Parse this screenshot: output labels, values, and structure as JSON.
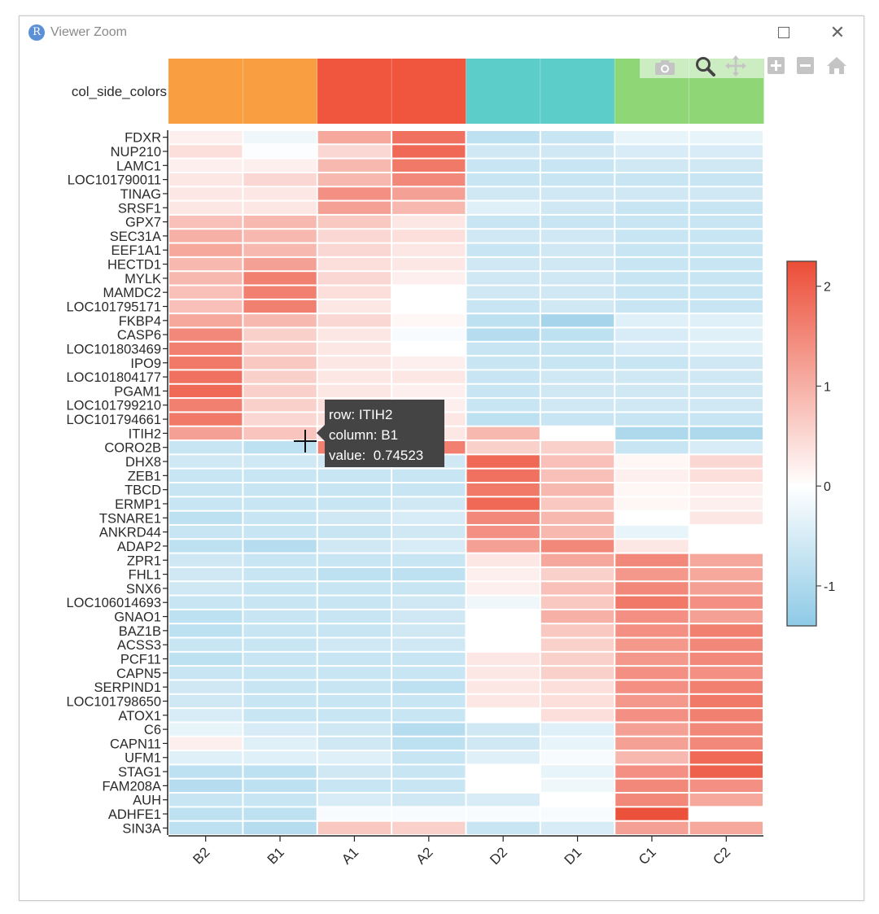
{
  "window": {
    "title": "Viewer Zoom",
    "app_icon": "R",
    "close_glyph": "✕"
  },
  "toolbar": {
    "buttons": [
      {
        "name": "camera-icon",
        "label": "Download plot as a png"
      },
      {
        "name": "zoom-icon",
        "label": "Zoom"
      },
      {
        "name": "pan-icon",
        "label": "Pan"
      },
      {
        "name": "zoom-in-icon",
        "label": "Zoom in"
      },
      {
        "name": "zoom-out-icon",
        "label": "Zoom out"
      },
      {
        "name": "home-icon",
        "label": "Reset axes"
      }
    ]
  },
  "tooltip": {
    "row": "row: ITIH2",
    "column": "column: B1",
    "value": "value:  0.74523"
  },
  "chart_data": {
    "type": "heatmap",
    "columns": [
      "B2",
      "B1",
      "A1",
      "A2",
      "D2",
      "D1",
      "C1",
      "C2"
    ],
    "rows": [
      "FDXR",
      "NUP210",
      "LAMC1",
      "LOC101790011",
      "TINAG",
      "SRSF1",
      "GPX7",
      "SEC31A",
      "EEF1A1",
      "HECTD1",
      "MYLK",
      "MAMDC2",
      "LOC101795171",
      "FKBP4",
      "CASP6",
      "LOC101803469",
      "IPO9",
      "LOC101804177",
      "PGAM1",
      "LOC101799210",
      "LOC101794661",
      "ITIH2",
      "CORO2B",
      "DHX8",
      "ZEB1",
      "TBCD",
      "ERMP1",
      "TSNARE1",
      "ANKRD44",
      "ADAP2",
      "ZPR1",
      "FHL1",
      "SNX6",
      "LOC106014693",
      "GNAO1",
      "BAZ1B",
      "ACSS3",
      "PCF11",
      "CAPN5",
      "SERPIND1",
      "LOC101798650",
      "ATOX1",
      "C6",
      "CAPN11",
      "UFM1",
      "STAG1",
      "FAM208A",
      "AUH",
      "ADHFE1",
      "SIN3A"
    ],
    "values": [
      [
        0.2,
        -0.2,
        1.1,
        1.8,
        -0.8,
        -0.7,
        -0.3,
        -0.3
      ],
      [
        0.4,
        -0.05,
        0.5,
        1.9,
        -0.6,
        -0.6,
        -0.5,
        -0.5
      ],
      [
        0.2,
        0.2,
        0.9,
        1.7,
        -0.7,
        -0.7,
        -0.6,
        -0.6
      ],
      [
        0.3,
        0.5,
        0.9,
        1.5,
        -0.7,
        -0.7,
        -0.7,
        -0.7
      ],
      [
        0.3,
        0.3,
        1.4,
        1.2,
        -0.6,
        -0.6,
        -0.6,
        -0.6
      ],
      [
        0.3,
        0.3,
        1.2,
        0.9,
        -0.4,
        -0.6,
        -0.7,
        -0.7
      ],
      [
        0.8,
        0.9,
        0.7,
        0.3,
        -0.7,
        -0.7,
        -0.7,
        -0.7
      ],
      [
        1.0,
        0.9,
        0.5,
        0.4,
        -0.6,
        -0.6,
        -0.7,
        -0.7
      ],
      [
        1.1,
        0.9,
        0.5,
        0.3,
        -0.7,
        -0.6,
        -0.7,
        -0.7
      ],
      [
        0.9,
        1.2,
        0.4,
        0.3,
        -0.6,
        -0.6,
        -0.7,
        -0.7
      ],
      [
        0.9,
        1.6,
        0.5,
        0.2,
        -0.6,
        -0.6,
        -0.7,
        -0.7
      ],
      [
        0.8,
        1.6,
        0.4,
        0.0,
        -0.6,
        -0.6,
        -0.7,
        -0.7
      ],
      [
        0.8,
        1.6,
        0.3,
        0.0,
        -0.7,
        -0.6,
        -0.7,
        -0.7
      ],
      [
        1.1,
        0.9,
        0.5,
        0.1,
        -0.8,
        -1.1,
        -0.4,
        -0.4
      ],
      [
        1.5,
        0.6,
        0.3,
        -0.1,
        -0.9,
        -0.8,
        -0.5,
        -0.4
      ],
      [
        1.6,
        0.6,
        0.3,
        0.0,
        -0.7,
        -0.7,
        -0.5,
        -0.4
      ],
      [
        1.7,
        0.7,
        0.3,
        0.2,
        -0.7,
        -0.7,
        -0.7,
        -0.6
      ],
      [
        1.8,
        0.6,
        0.3,
        0.3,
        -0.7,
        -0.6,
        -0.6,
        -0.6
      ],
      [
        1.9,
        0.6,
        0.3,
        0.2,
        -0.7,
        -0.6,
        -0.6,
        -0.6
      ],
      [
        1.6,
        0.6,
        0.4,
        0.2,
        -0.7,
        -0.6,
        -0.6,
        -0.6
      ],
      [
        1.7,
        0.5,
        0.4,
        0.3,
        -0.8,
        -0.7,
        -0.7,
        -0.7
      ],
      [
        1.2,
        0.74523,
        0.4,
        0.3,
        0.9,
        0.0,
        -1.0,
        -1.0
      ],
      [
        -0.7,
        -0.8,
        1.6,
        1.6,
        0.6,
        0.6,
        -0.7,
        -0.5
      ],
      [
        -0.6,
        -0.6,
        -0.6,
        -0.6,
        1.9,
        0.8,
        0.1,
        0.5
      ],
      [
        -0.7,
        -0.7,
        -0.7,
        -0.7,
        1.8,
        0.8,
        0.2,
        0.4
      ],
      [
        -0.7,
        -0.7,
        -0.7,
        -0.7,
        1.7,
        0.9,
        0.1,
        0.2
      ],
      [
        -0.7,
        -0.7,
        -0.7,
        -0.6,
        1.9,
        0.7,
        0.1,
        0.2
      ],
      [
        -0.8,
        -0.7,
        -0.6,
        -0.5,
        1.5,
        0.9,
        0.0,
        0.3
      ],
      [
        -0.7,
        -0.7,
        -0.7,
        -0.6,
        1.4,
        0.9,
        -0.3,
        0.0
      ],
      [
        -0.8,
        -0.9,
        -0.6,
        -0.5,
        1.2,
        1.5,
        0.3,
        0.0
      ],
      [
        -0.6,
        -0.7,
        -0.7,
        -0.7,
        0.3,
        1.1,
        1.5,
        1.1
      ],
      [
        -0.6,
        -0.7,
        -0.8,
        -0.8,
        0.2,
        0.6,
        1.3,
        1.1
      ],
      [
        -0.6,
        -0.7,
        -0.7,
        -0.7,
        0.2,
        0.8,
        1.5,
        1.2
      ],
      [
        -0.7,
        -0.7,
        -0.7,
        -0.6,
        -0.2,
        0.7,
        1.7,
        1.4
      ],
      [
        -0.8,
        -0.7,
        -0.7,
        -0.6,
        0.0,
        1.0,
        1.4,
        1.2
      ],
      [
        -0.8,
        -0.7,
        -0.7,
        -0.6,
        0.0,
        0.7,
        1.4,
        1.6
      ],
      [
        -0.7,
        -0.7,
        -0.6,
        -0.6,
        0.0,
        0.6,
        1.3,
        1.5
      ],
      [
        -0.8,
        -0.7,
        -0.7,
        -0.7,
        0.3,
        0.6,
        1.3,
        1.5
      ],
      [
        -0.7,
        -0.7,
        -0.7,
        -0.7,
        0.3,
        0.6,
        1.4,
        1.4
      ],
      [
        -0.6,
        -0.7,
        -0.7,
        -0.8,
        0.3,
        0.4,
        1.4,
        1.6
      ],
      [
        -0.6,
        -0.7,
        -0.7,
        -0.7,
        0.3,
        0.4,
        1.3,
        1.7
      ],
      [
        -0.5,
        -0.7,
        -0.7,
        -0.7,
        0.0,
        0.4,
        1.4,
        1.6
      ],
      [
        -0.3,
        -0.5,
        -0.6,
        -0.9,
        -0.6,
        -0.4,
        1.2,
        1.5
      ],
      [
        0.2,
        -0.4,
        -0.6,
        -0.8,
        -0.6,
        -0.3,
        1.2,
        1.5
      ],
      [
        -0.4,
        -0.4,
        -0.4,
        -0.7,
        -0.4,
        -0.1,
        0.9,
        1.9
      ],
      [
        -0.8,
        -0.8,
        -0.6,
        -0.7,
        0.0,
        -0.3,
        1.4,
        2.0
      ],
      [
        -0.9,
        -0.8,
        -0.7,
        -0.7,
        0.0,
        -0.2,
        1.5,
        1.4
      ],
      [
        -0.7,
        -0.7,
        -0.5,
        -0.6,
        -0.5,
        0.0,
        1.5,
        1.1
      ],
      [
        -0.8,
        -0.8,
        -0.1,
        -0.1,
        -0.1,
        -0.1,
        2.2,
        0.0
      ],
      [
        -0.8,
        -0.9,
        0.7,
        0.6,
        -0.7,
        -0.5,
        1.2,
        1.1
      ]
    ],
    "col_side_label": "col_side_colors",
    "col_side_colors": [
      "#f99f41",
      "#f99f41",
      "#f0553d",
      "#f0553d",
      "#5ccdc9",
      "#5ccdc9",
      "#8fd677",
      "#8fd677"
    ],
    "colorbar": {
      "ticks": [
        2,
        1,
        0,
        -1
      ],
      "range": [
        -1.4,
        2.25
      ]
    },
    "colors": {
      "low": "#8ecae6",
      "mid": "#ffffff",
      "high": "#ec4d37"
    },
    "hover": {
      "row": "ITIH2",
      "column": "B1",
      "value": 0.74523
    }
  }
}
